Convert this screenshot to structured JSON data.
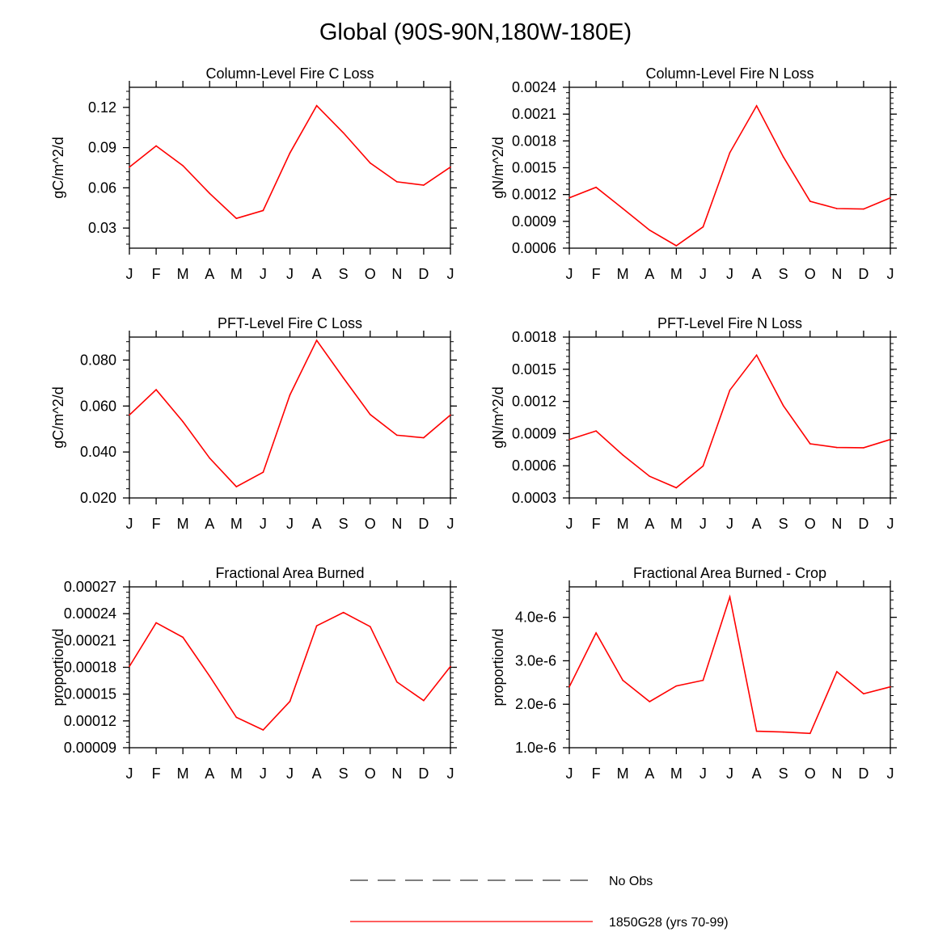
{
  "title": "Global (90S-90N,180W-180E)",
  "month_labels": [
    "J",
    "F",
    "M",
    "A",
    "M",
    "J",
    "J",
    "A",
    "S",
    "O",
    "N",
    "D",
    "J"
  ],
  "legend": [
    {
      "label": "No Obs",
      "style": "dashed",
      "color": "#555555"
    },
    {
      "label": "1850G28 (yrs 70-99)",
      "style": "solid",
      "color": "#ff0000"
    }
  ],
  "colors": {
    "series": "#ff0000",
    "axis": "#000000"
  },
  "chart_data": [
    {
      "type": "line",
      "title": "Column-Level Fire C Loss",
      "ylabel": "gC/m^2/d",
      "ylim": [
        0.015,
        0.135
      ],
      "yticks": [
        0.03,
        0.06,
        0.09,
        0.12
      ],
      "ytick_labels": [
        "0.03",
        "0.06",
        "0.09",
        "0.12"
      ],
      "x": [
        "J",
        "F",
        "M",
        "A",
        "M",
        "J",
        "J",
        "A",
        "S",
        "O",
        "N",
        "D",
        "J"
      ],
      "series": [
        {
          "name": "1850G28 (yrs 70-99)",
          "values": [
            0.0755,
            0.0913,
            0.0765,
            0.0558,
            0.0372,
            0.0431,
            0.086,
            0.1213,
            0.101,
            0.0785,
            0.0645,
            0.062,
            0.0755
          ]
        }
      ]
    },
    {
      "type": "line",
      "title": "Column-Level Fire N Loss",
      "ylabel": "gN/m^2/d",
      "ylim": [
        0.0006,
        0.0024
      ],
      "yticks": [
        0.0006,
        0.0009,
        0.0012,
        0.0015,
        0.0018,
        0.0021,
        0.0024
      ],
      "ytick_labels": [
        "0.0006",
        "0.0009",
        "0.0012",
        "0.0015",
        "0.0018",
        "0.0021",
        "0.0024"
      ],
      "x": [
        "J",
        "F",
        "M",
        "A",
        "M",
        "J",
        "J",
        "A",
        "S",
        "O",
        "N",
        "D",
        "J"
      ],
      "series": [
        {
          "name": "1850G28 (yrs 70-99)",
          "values": [
            0.001163,
            0.001281,
            0.001043,
            0.000802,
            0.000627,
            0.000838,
            0.001668,
            0.002193,
            0.001621,
            0.001125,
            0.001043,
            0.001038,
            0.001163
          ]
        }
      ]
    },
    {
      "type": "line",
      "title": "PFT-Level Fire C Loss",
      "ylabel": "gC/m^2/d",
      "ylim": [
        0.02,
        0.09
      ],
      "yticks": [
        0.02,
        0.04,
        0.06,
        0.08
      ],
      "ytick_labels": [
        "0.020",
        "0.040",
        "0.060",
        "0.080"
      ],
      "x": [
        "J",
        "F",
        "M",
        "A",
        "M",
        "J",
        "J",
        "A",
        "S",
        "O",
        "N",
        "D",
        "J"
      ],
      "series": [
        {
          "name": "1850G28 (yrs 70-99)",
          "values": [
            0.0561,
            0.0671,
            0.0532,
            0.0373,
            0.0249,
            0.0312,
            0.0648,
            0.0886,
            0.0722,
            0.0563,
            0.0473,
            0.0462,
            0.0561
          ]
        }
      ]
    },
    {
      "type": "line",
      "title": "PFT-Level Fire N Loss",
      "ylabel": "gN/m^2/d",
      "ylim": [
        0.0003,
        0.0018
      ],
      "yticks": [
        0.0003,
        0.0006,
        0.0009,
        0.0012,
        0.0015,
        0.0018
      ],
      "ytick_labels": [
        "0.0003",
        "0.0006",
        "0.0009",
        "0.0012",
        "0.0015",
        "0.0018"
      ],
      "x": [
        "J",
        "F",
        "M",
        "A",
        "M",
        "J",
        "J",
        "A",
        "S",
        "O",
        "N",
        "D",
        "J"
      ],
      "series": [
        {
          "name": "1850G28 (yrs 70-99)",
          "values": [
            0.000845,
            0.000925,
            0.0007,
            0.000502,
            0.000395,
            0.000598,
            0.001305,
            0.001632,
            0.00116,
            0.000805,
            0.00077,
            0.000768,
            0.000845
          ]
        }
      ]
    },
    {
      "type": "line",
      "title": "Fractional Area Burned",
      "ylabel": "proportion/d",
      "ylim": [
        9e-05,
        0.00027
      ],
      "yticks": [
        9e-05,
        0.00012,
        0.00015,
        0.00018,
        0.00021,
        0.00024,
        0.00027
      ],
      "ytick_labels": [
        "0.00009",
        "0.00012",
        "0.00015",
        "0.00018",
        "0.00021",
        "0.00024",
        "0.00027"
      ],
      "x": [
        "J",
        "F",
        "M",
        "A",
        "M",
        "J",
        "J",
        "A",
        "S",
        "O",
        "N",
        "D",
        "J"
      ],
      "series": [
        {
          "name": "1850G28 (yrs 70-99)",
          "values": [
            0.0001809,
            0.0002298,
            0.0002136,
            0.00017,
            0.000124,
            0.0001099,
            0.0001418,
            0.0002264,
            0.0002413,
            0.0002255,
            0.0001636,
            0.0001427,
            0.0001809
          ]
        }
      ]
    },
    {
      "type": "line",
      "title": "Fractional Area Burned - Crop",
      "ylabel": "proportion/d",
      "ylim": [
        1e-06,
        4.7e-06
      ],
      "yticks": [
        1e-06,
        2e-06,
        3e-06,
        4e-06
      ],
      "ytick_labels": [
        "1.0e-6",
        "2.0e-6",
        "3.0e-6",
        "4.0e-6"
      ],
      "x": [
        "J",
        "F",
        "M",
        "A",
        "M",
        "J",
        "J",
        "A",
        "S",
        "O",
        "N",
        "D",
        "J"
      ],
      "series": [
        {
          "name": "1850G28 (yrs 70-99)",
          "values": [
            2.4e-06,
            3.64e-06,
            2.55e-06,
            2.06e-06,
            2.42e-06,
            2.55e-06,
            4.47e-06,
            1.38e-06,
            1.36e-06,
            1.33e-06,
            2.75e-06,
            2.24e-06,
            2.4e-06
          ]
        }
      ]
    }
  ]
}
